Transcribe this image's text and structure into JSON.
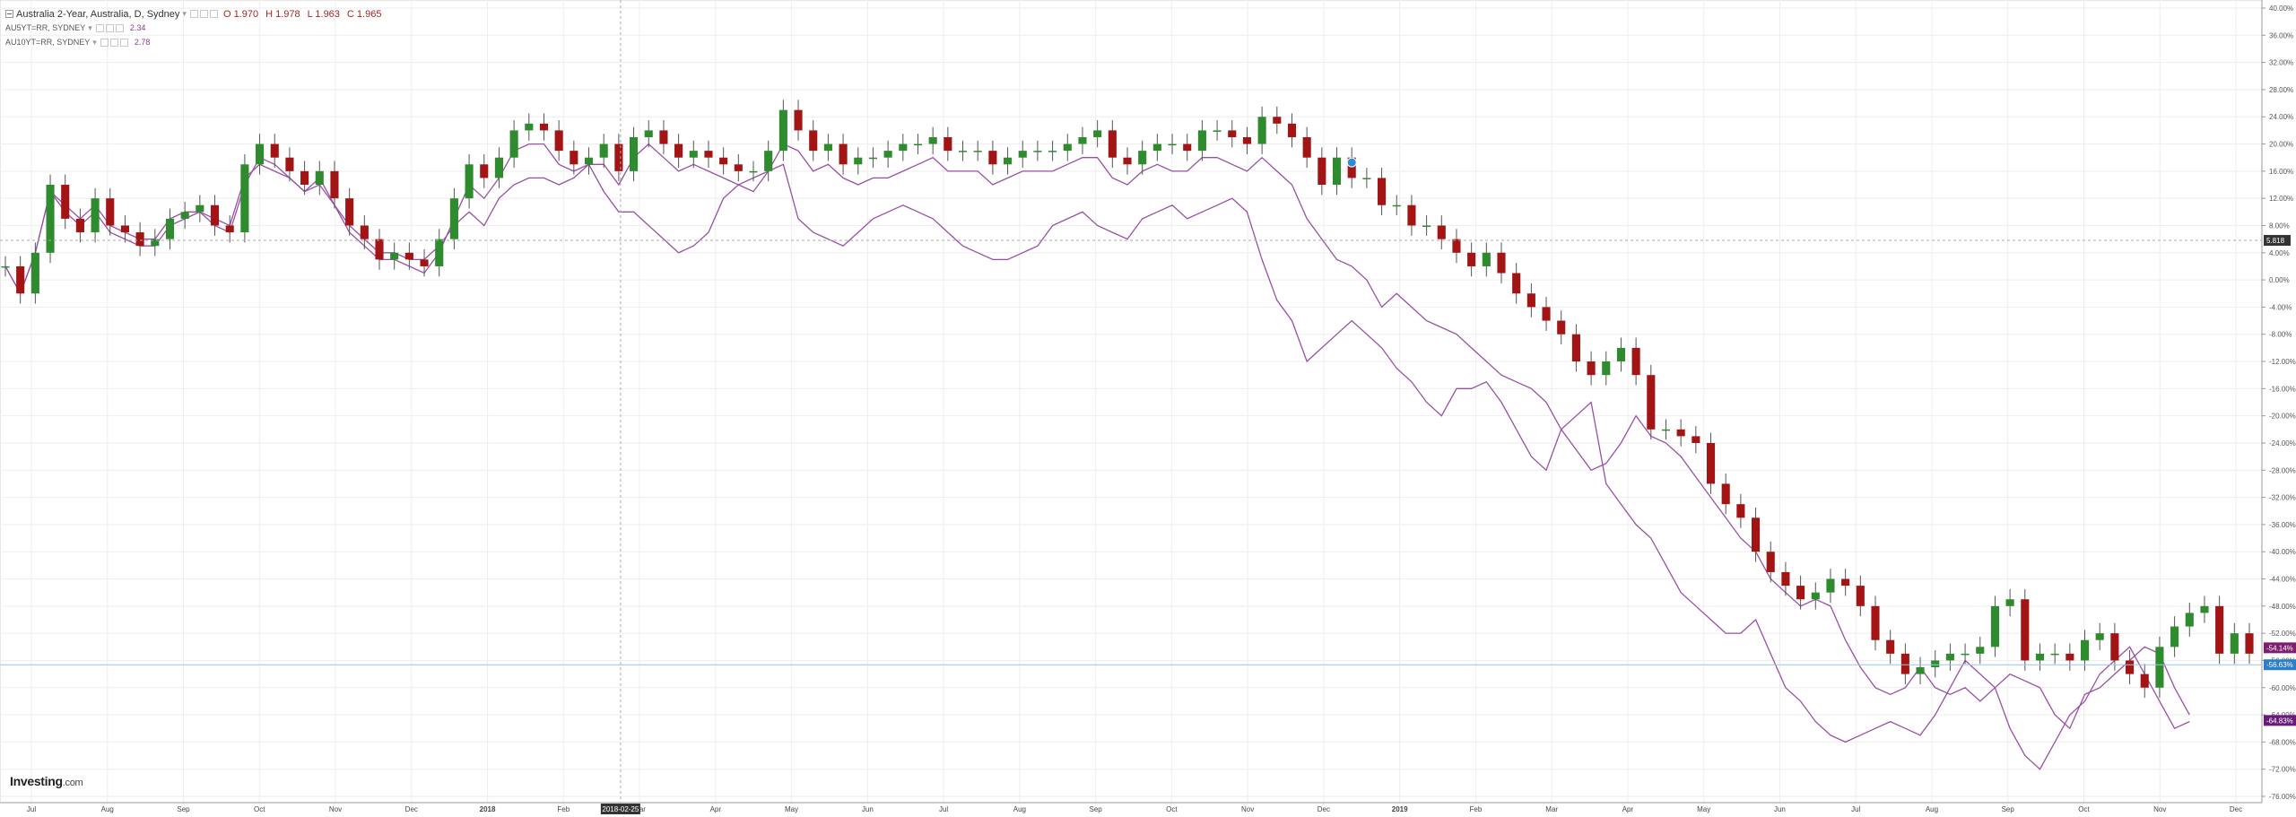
{
  "legend": {
    "main": {
      "title": "Australia 2-Year, Australia, D, Sydney",
      "open": "O 1.970",
      "high": "H 1.978",
      "low": "L 1.963",
      "close": "C 1.965"
    },
    "series": [
      {
        "name": "AU5YT=RR, SYDNEY",
        "value": "2.34",
        "color": "#8e3a8e"
      },
      {
        "name": "AU10YT=RR, SYDNEY",
        "value": "2.78",
        "color": "#8e3a8e"
      }
    ]
  },
  "logo": {
    "text": "Investing",
    "suffix": ".com"
  },
  "colors": {
    "candle_up": "#2e8b2e",
    "candle_down": "#a31515",
    "compare_line": "#9a4fa6",
    "grid": "#eeeeee",
    "crosshair": "#aaaaaa",
    "current_line": "#9cc4e4",
    "badge_dark": "#333333",
    "badge_purple": "#7d1f6e",
    "badge_blue": "#2a7fc8",
    "badge_purple2": "#6a1b7a",
    "marker": "#2a8fd8"
  },
  "chart_data": {
    "type": "line",
    "x_axis_labels": [
      "Jul",
      "Aug",
      "Sep",
      "Oct",
      "Nov",
      "Dec",
      "2018",
      "Feb",
      "Mar",
      "Apr",
      "May",
      "Jun",
      "Jul",
      "Aug",
      "Sep",
      "Oct",
      "Nov",
      "Dec",
      "2019",
      "Feb",
      "Mar",
      "Apr",
      "May",
      "Jun",
      "Jul",
      "Aug",
      "Sep",
      "Oct",
      "Nov",
      "Dec"
    ],
    "bold_labels": [
      "2018",
      "2019"
    ],
    "crosshair_date": "2018-02-25",
    "y_axis": {
      "unit": "%",
      "ylim": [
        -76,
        40
      ],
      "ticks": [
        "40.00%",
        "36.00%",
        "32.00%",
        "28.00%",
        "24.00%",
        "20.00%",
        "16.00%",
        "12.00%",
        "8.00%",
        "4.00%",
        "0.00%",
        "-4.00%",
        "-8.00%",
        "-12.00%",
        "-16.00%",
        "-20.00%",
        "-24.00%",
        "-28.00%",
        "-32.00%",
        "-36.00%",
        "-40.00%",
        "-44.00%",
        "-48.00%",
        "-52.00%",
        "-56.00%",
        "-60.00%",
        "-64.00%",
        "-68.00%",
        "-72.00%",
        "-76.00%"
      ]
    },
    "crosshair_value_label": "5.818",
    "crosshair_value": 5.818,
    "current_value": -56.63,
    "price_badges": [
      {
        "label": "-54.14%",
        "value": -54.14,
        "style": "purple"
      },
      {
        "label": "-56.63%",
        "value": -56.63,
        "style": "blue"
      },
      {
        "label": "-64.83%",
        "value": -64.83,
        "style": "purple2"
      }
    ],
    "marker_value": 16.5,
    "series": [
      {
        "kind": "candles",
        "name": "Australia 2-Year",
        "values": [
          2,
          -2,
          4,
          14,
          9,
          7,
          12,
          8,
          7,
          5,
          6,
          9,
          10,
          11,
          8,
          7,
          17,
          20,
          18,
          16,
          14,
          16,
          12,
          8,
          6,
          3,
          4,
          3,
          2,
          6,
          12,
          17,
          15,
          18,
          22,
          23,
          22,
          19,
          17,
          18,
          20,
          16,
          21,
          22,
          20,
          18,
          19,
          18,
          17,
          16,
          16,
          19,
          25,
          22,
          19,
          20,
          17,
          18,
          18,
          19,
          20,
          20,
          21,
          19,
          19,
          19,
          17,
          18,
          19,
          19,
          19,
          20,
          21,
          22,
          18,
          17,
          19,
          20,
          20,
          19,
          22,
          22,
          21,
          20,
          24,
          23,
          21,
          18,
          14,
          18,
          15,
          15,
          11,
          11,
          8,
          8,
          6,
          4,
          2,
          4,
          1,
          -2,
          -4,
          -6,
          -8,
          -12,
          -14,
          -12,
          -10,
          -14,
          -22,
          -22,
          -23,
          -24,
          -30,
          -33,
          -35,
          -40,
          -43,
          -45,
          -47,
          -46,
          -44,
          -45,
          -48,
          -53,
          -55,
          -58,
          -57,
          -56,
          -55,
          -55,
          -54,
          -48,
          -47,
          -56,
          -55,
          -55,
          -56,
          -53,
          -52,
          -56,
          -58,
          -60,
          -54,
          -51,
          -49,
          -48,
          -55,
          -52,
          -55
        ]
      },
      {
        "kind": "line",
        "name": "AU5YT=RR, SYDNEY",
        "values": [
          2,
          -2,
          4,
          13,
          10,
          8,
          10,
          7,
          6,
          5,
          5,
          8,
          9,
          10,
          8,
          7,
          14,
          18,
          17,
          15,
          13,
          15,
          11,
          7,
          5,
          3,
          3,
          2,
          1,
          4,
          9,
          14,
          12,
          15,
          19,
          20,
          20,
          17,
          16,
          17,
          17,
          14,
          18,
          20,
          18,
          16,
          17,
          16,
          15,
          14,
          13,
          16,
          20,
          19,
          16,
          17,
          15,
          14,
          15,
          15,
          16,
          17,
          18,
          16,
          16,
          16,
          14,
          15,
          16,
          16,
          16,
          17,
          18,
          18,
          15,
          14,
          16,
          17,
          16,
          16,
          18,
          18,
          17,
          16,
          18,
          16,
          14,
          9,
          6,
          3,
          2,
          0,
          -4,
          -2,
          -4,
          -6,
          -7,
          -8,
          -10,
          -12,
          -14,
          -15,
          -16,
          -18,
          -22,
          -25,
          -28,
          -27,
          -24,
          -20,
          -23,
          -24,
          -26,
          -29,
          -32,
          -35,
          -38,
          -40,
          -44,
          -46,
          -48,
          -47,
          -48,
          -53,
          -57,
          -60,
          -61,
          -60,
          -57,
          -60,
          -61,
          -60,
          -62,
          -60,
          -58,
          -59,
          -60,
          -64,
          -66,
          -61,
          -60,
          -58,
          -56,
          -54,
          -55,
          -60,
          -64
        ]
      },
      {
        "kind": "line",
        "name": "AU10YT=RR, SYDNEY",
        "values": [
          2,
          -2,
          4,
          13,
          11,
          9,
          11,
          8,
          7,
          6,
          6,
          9,
          10,
          10,
          9,
          8,
          15,
          17,
          16,
          15,
          13,
          14,
          11,
          8,
          6,
          4,
          4,
          3,
          3,
          5,
          8,
          10,
          8,
          12,
          14,
          15,
          15,
          14,
          15,
          17,
          13,
          10,
          10,
          8,
          6,
          4,
          5,
          7,
          12,
          14,
          15,
          16,
          17,
          9,
          7,
          6,
          5,
          7,
          9,
          10,
          11,
          10,
          9,
          7,
          5,
          4,
          3,
          3,
          4,
          5,
          8,
          9,
          10,
          8,
          7,
          6,
          9,
          10,
          11,
          9,
          10,
          11,
          12,
          10,
          3,
          -3,
          -6,
          -12,
          -10,
          -8,
          -6,
          -8,
          -10,
          -13,
          -15,
          -18,
          -20,
          -16,
          -16,
          -15,
          -18,
          -22,
          -26,
          -28,
          -22,
          -20,
          -18,
          -30,
          -33,
          -36,
          -38,
          -42,
          -46,
          -48,
          -50,
          -52,
          -52,
          -50,
          -55,
          -60,
          -62,
          -65,
          -67,
          -68,
          -67,
          -66,
          -65,
          -66,
          -67,
          -64,
          -60,
          -56,
          -58,
          -60,
          -66,
          -70,
          -72,
          -68,
          -64,
          -62,
          -58,
          -56,
          -54,
          -58,
          -62,
          -66,
          -65
        ]
      }
    ]
  }
}
